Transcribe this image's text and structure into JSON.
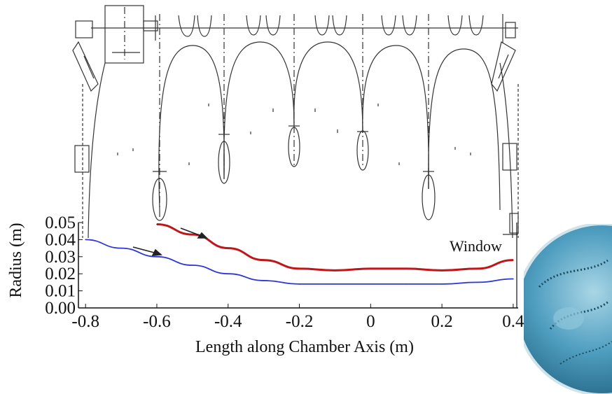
{
  "chart_data": {
    "type": "line",
    "xlabel": "Length along Chamber Axis (m)",
    "ylabel": "Radius (m)",
    "xlim": [
      -0.82,
      0.41
    ],
    "ylim": [
      0.0,
      0.05
    ],
    "x_ticks": [
      "-0.8",
      "-0.6",
      "-0.4",
      "-0.2",
      "0",
      "0.2",
      "0.4"
    ],
    "x_tick_values": [
      -0.8,
      -0.6,
      -0.4,
      -0.2,
      0.0,
      0.2,
      0.4
    ],
    "y_ticks": [
      "0.00",
      "0.01",
      "0.02",
      "0.03",
      "0.04",
      "0.05"
    ],
    "y_tick_values": [
      0.0,
      0.01,
      0.02,
      0.03,
      0.04,
      0.05
    ],
    "annotation": "Window",
    "series": [
      {
        "color": "#c0161a",
        "x": [
          -0.6,
          -0.5,
          -0.4,
          -0.3,
          -0.2,
          -0.1,
          0.0,
          0.1,
          0.2,
          0.3,
          0.4
        ],
        "y": [
          0.049,
          0.043,
          0.035,
          0.028,
          0.023,
          0.022,
          0.023,
          0.023,
          0.022,
          0.023,
          0.028
        ]
      },
      {
        "color": "#2b35d8",
        "x": [
          -0.8,
          -0.7,
          -0.6,
          -0.5,
          -0.4,
          -0.3,
          -0.2,
          -0.1,
          0.0,
          0.1,
          0.2,
          0.3,
          0.4
        ],
        "y": [
          0.04,
          0.035,
          0.03,
          0.025,
          0.02,
          0.016,
          0.014,
          0.014,
          0.014,
          0.014,
          0.014,
          0.015,
          0.017
        ]
      }
    ]
  },
  "colors": {
    "outline": "#333333",
    "sphere": "#3f93b5",
    "arrow": "#222222"
  },
  "diagram": {
    "cells": 5,
    "arrow_count": 2
  }
}
